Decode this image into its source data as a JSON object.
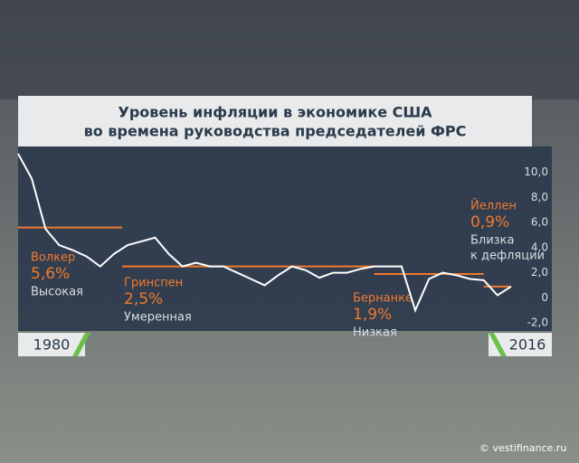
{
  "chart_data": {
    "type": "line",
    "title": "Уровень инфляции в экономике США",
    "subtitle": "во времена руководства председателей ФРС",
    "x": [
      1980,
      1981,
      1982,
      1983,
      1984,
      1985,
      1986,
      1987,
      1988,
      1989,
      1990,
      1991,
      1992,
      1993,
      1994,
      1995,
      1996,
      1997,
      1998,
      1999,
      2000,
      2001,
      2002,
      2003,
      2004,
      2005,
      2006,
      2007,
      2008,
      2009,
      2010,
      2011,
      2012,
      2013,
      2014,
      2015,
      2016
    ],
    "series": [
      {
        "color": "#ffffff",
        "values": [
          11.5,
          9.5,
          5.5,
          4.2,
          3.8,
          3.3,
          2.5,
          3.5,
          4.2,
          4.5,
          4.8,
          3.5,
          2.5,
          2.8,
          2.5,
          2.5,
          2.0,
          1.5,
          1.0,
          1.8,
          2.5,
          2.2,
          1.6,
          2.0,
          2.0,
          2.3,
          2.5,
          2.5,
          2.5,
          -1.0,
          1.5,
          2.0,
          1.8,
          1.5,
          1.4,
          0.2,
          0.9
        ]
      }
    ],
    "xlim": [
      1980,
      2016
    ],
    "xlabels": [
      "1980",
      "2016"
    ],
    "ylim": [
      -2,
      12
    ],
    "yticks": [
      {
        "value": 10,
        "label": "10,0"
      },
      {
        "value": 8,
        "label": "8,0"
      },
      {
        "value": 6,
        "label": "6,0"
      },
      {
        "value": 4,
        "label": "4,0"
      },
      {
        "value": 2,
        "label": "2,0"
      },
      0,
      {
        "value": -2,
        "label": "-2,0"
      }
    ],
    "eras": [
      {
        "name": "Волкер",
        "value": 5.6,
        "value_label": "5,6%",
        "description_lines": [
          "Высокая"
        ],
        "start": 1980,
        "end": 1987.6
      },
      {
        "name": "Гринспен",
        "value": 2.5,
        "value_label": "2,5%",
        "description_lines": [
          "Умеренная"
        ],
        "start": 1987.6,
        "end": 2006
      },
      {
        "name": "Бернанке",
        "value": 1.9,
        "value_label": "1,9%",
        "description_lines": [
          "Низкая"
        ],
        "start": 2006,
        "end": 2014
      },
      {
        "name": "Йеллен",
        "value": 0.9,
        "value_label": "0,9%",
        "description_lines": [
          "Близка",
          "к дефляции"
        ],
        "start": 2014,
        "end": 2016
      }
    ],
    "era_color": "#f07a2e",
    "source": "© vestifinance.ru"
  }
}
